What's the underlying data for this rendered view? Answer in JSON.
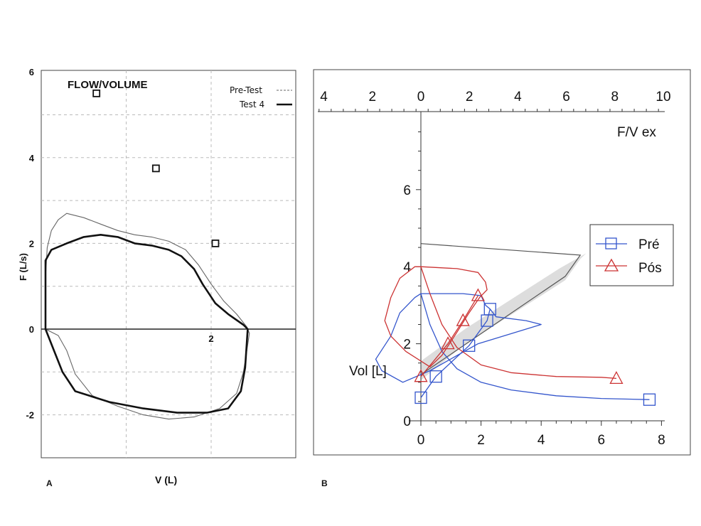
{
  "chart_data": [
    {
      "panel": "A",
      "type": "line",
      "title": "FLOW/VOLUME",
      "xlabel": "V (L)",
      "ylabel": "F (L/s)",
      "xlim": [
        0,
        3
      ],
      "ylim": [
        -3,
        6
      ],
      "x_ticks": [
        "2"
      ],
      "y_ticks": [
        "6",
        "4",
        "2",
        "0",
        "-2"
      ],
      "grid": true,
      "legend_position": "top-right",
      "series": [
        {
          "name": "Pre-Test",
          "style": "thin",
          "points": [
            [
              0.05,
              0
            ],
            [
              0.05,
              1.2
            ],
            [
              0.07,
              1.9
            ],
            [
              0.12,
              2.3
            ],
            [
              0.2,
              2.55
            ],
            [
              0.3,
              2.7
            ],
            [
              0.5,
              2.6
            ],
            [
              0.7,
              2.45
            ],
            [
              0.9,
              2.3
            ],
            [
              1.1,
              2.2
            ],
            [
              1.3,
              2.15
            ],
            [
              1.5,
              2.05
            ],
            [
              1.7,
              1.85
            ],
            [
              1.85,
              1.5
            ],
            [
              2.0,
              1.05
            ],
            [
              2.15,
              0.65
            ],
            [
              2.3,
              0.35
            ],
            [
              2.42,
              0.05
            ],
            [
              2.45,
              -0.1
            ],
            [
              2.42,
              -0.5
            ],
            [
              2.38,
              -1.0
            ],
            [
              2.3,
              -1.5
            ],
            [
              2.1,
              -1.85
            ],
            [
              1.8,
              -2.05
            ],
            [
              1.5,
              -2.1
            ],
            [
              1.2,
              -2.0
            ],
            [
              0.9,
              -1.8
            ],
            [
              0.6,
              -1.55
            ],
            [
              0.4,
              -1.05
            ],
            [
              0.3,
              -0.5
            ],
            [
              0.2,
              -0.15
            ],
            [
              0.05,
              0
            ]
          ]
        },
        {
          "name": "Test 4",
          "style": "thick",
          "points": [
            [
              0.05,
              0
            ],
            [
              0.05,
              0.8
            ],
            [
              0.05,
              1.6
            ],
            [
              0.12,
              1.85
            ],
            [
              0.3,
              2.0
            ],
            [
              0.5,
              2.15
            ],
            [
              0.7,
              2.2
            ],
            [
              0.9,
              2.15
            ],
            [
              1.1,
              2.0
            ],
            [
              1.3,
              1.95
            ],
            [
              1.5,
              1.85
            ],
            [
              1.65,
              1.7
            ],
            [
              1.8,
              1.4
            ],
            [
              1.9,
              1.05
            ],
            [
              2.05,
              0.6
            ],
            [
              2.2,
              0.35
            ],
            [
              2.38,
              0.1
            ],
            [
              2.43,
              0.0
            ],
            [
              2.42,
              -0.3
            ],
            [
              2.4,
              -0.9
            ],
            [
              2.35,
              -1.45
            ],
            [
              2.2,
              -1.85
            ],
            [
              1.95,
              -1.95
            ],
            [
              1.6,
              -1.95
            ],
            [
              1.2,
              -1.85
            ],
            [
              0.8,
              -1.7
            ],
            [
              0.4,
              -1.45
            ],
            [
              0.25,
              -1.0
            ],
            [
              0.15,
              -0.5
            ],
            [
              0.05,
              0
            ]
          ]
        },
        {
          "name": "markers",
          "style": "square",
          "points": [
            [
              0.65,
              5.5
            ],
            [
              1.35,
              3.75
            ],
            [
              2.05,
              2.0
            ]
          ]
        }
      ]
    },
    {
      "panel": "B",
      "type": "line",
      "xlabel": "",
      "ylabel": "Vol [L]",
      "x2label": "F/V ex",
      "xlim": [
        0,
        8
      ],
      "ylim": [
        0,
        7.7
      ],
      "x2lim": [
        -4,
        10
      ],
      "x_ticks": [
        "0",
        "2",
        "4",
        "6",
        "8"
      ],
      "y_ticks": [
        "0",
        "2",
        "4",
        "6"
      ],
      "x2_ticks": [
        "4",
        "2",
        "0",
        "2",
        "4",
        "6",
        "8",
        "10"
      ],
      "legend_position": "top-right",
      "colors": {
        "pre": "#3355cc",
        "pos": "#cc3333",
        "reference": "#555555",
        "band": "#dddddd"
      },
      "series": [
        {
          "name": "Pré",
          "points": [
            [
              0,
              0.6
            ],
            [
              0.5,
              1.15
            ],
            [
              1.6,
              1.95
            ],
            [
              2.2,
              2.6
            ],
            [
              2.3,
              2.9
            ]
          ],
          "loop": [
            [
              0,
              3.3
            ],
            [
              1.4,
              3.3
            ],
            [
              2.0,
              3.25
            ],
            [
              2.15,
              3.0
            ],
            [
              2.3,
              2.9
            ],
            [
              2.5,
              2.7
            ],
            [
              3.5,
              2.6
            ],
            [
              4.0,
              2.5
            ],
            [
              1.9,
              2.0
            ],
            [
              0.3,
              1.3
            ],
            [
              -0.6,
              1.0
            ],
            [
              -1.3,
              1.3
            ],
            [
              -1.5,
              1.6
            ],
            [
              -1.0,
              2.2
            ],
            [
              -0.7,
              2.8
            ],
            [
              -0.2,
              3.2
            ],
            [
              0,
              3.3
            ]
          ],
          "decay": [
            [
              0,
              3.3
            ],
            [
              0.3,
              2.5
            ],
            [
              0.7,
              1.8
            ],
            [
              1.2,
              1.35
            ],
            [
              2.0,
              1.0
            ],
            [
              3.0,
              0.8
            ],
            [
              4.5,
              0.65
            ],
            [
              6.0,
              0.58
            ],
            [
              7.6,
              0.55
            ]
          ]
        },
        {
          "name": "Pós",
          "points": [
            [
              0,
              1.15
            ],
            [
              0.9,
              2.0
            ],
            [
              1.4,
              2.6
            ],
            [
              1.9,
              3.25
            ]
          ],
          "loop": [
            [
              0,
              4.0
            ],
            [
              1.2,
              3.95
            ],
            [
              1.9,
              3.85
            ],
            [
              2.15,
              3.6
            ],
            [
              2.2,
              3.4
            ],
            [
              1.95,
              3.2
            ],
            [
              1.6,
              2.8
            ],
            [
              1.2,
              2.3
            ],
            [
              0.7,
              1.7
            ],
            [
              0.3,
              1.4
            ],
            [
              -0.5,
              1.8
            ],
            [
              -1.0,
              2.2
            ],
            [
              -1.2,
              2.6
            ],
            [
              -1.0,
              3.2
            ],
            [
              -0.7,
              3.7
            ],
            [
              -0.2,
              4.0
            ],
            [
              0,
              4.0
            ]
          ],
          "decay": [
            [
              0,
              4.0
            ],
            [
              0.3,
              3.3
            ],
            [
              0.7,
              2.5
            ],
            [
              1.2,
              1.9
            ],
            [
              2.0,
              1.45
            ],
            [
              3.0,
              1.25
            ],
            [
              4.5,
              1.15
            ],
            [
              6.0,
              1.13
            ],
            [
              6.5,
              1.1
            ]
          ]
        }
      ],
      "reference_line": [
        [
          0,
          4.6
        ],
        [
          5.3,
          4.3
        ],
        [
          4.8,
          3.75
        ],
        [
          0,
          1.2
        ]
      ],
      "reference_band": [
        [
          5.5,
          4.35
        ],
        [
          4.6,
          3.95
        ],
        [
          1.5,
          2.4
        ],
        [
          0,
          1.55
        ],
        [
          0,
          1.05
        ],
        [
          1.4,
          1.95
        ],
        [
          4.8,
          3.65
        ],
        [
          5.3,
          4.2
        ]
      ]
    }
  ],
  "panel_labels": {
    "a": "A",
    "b": "B"
  }
}
